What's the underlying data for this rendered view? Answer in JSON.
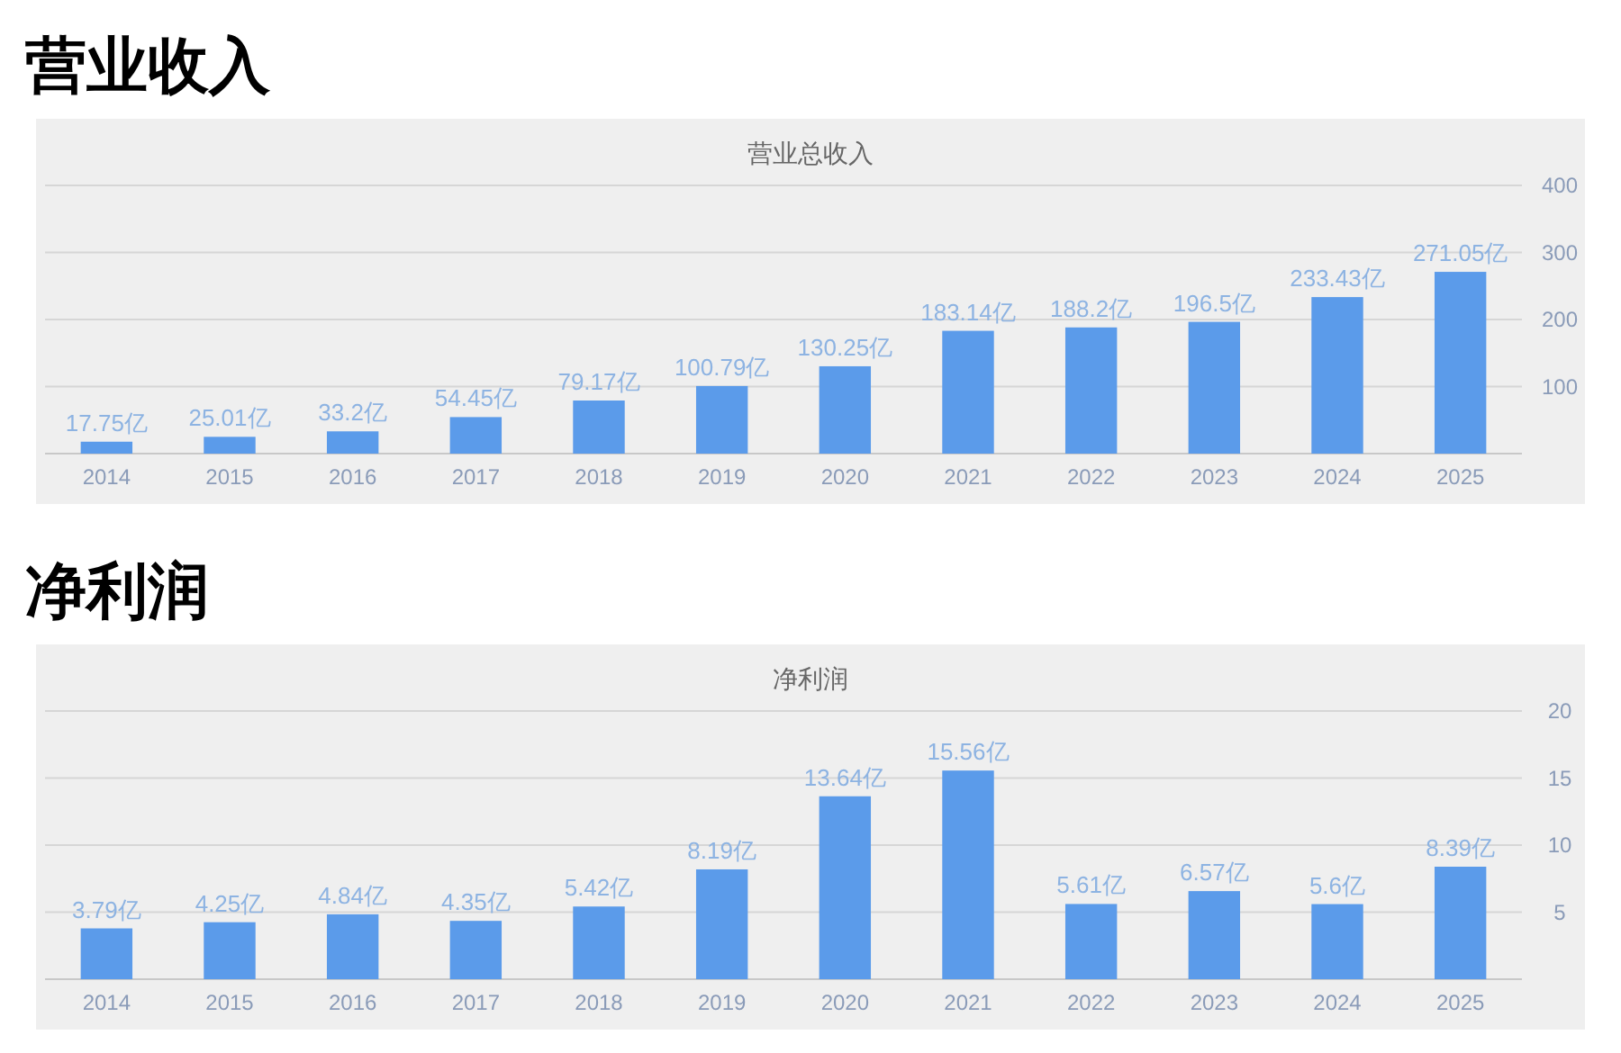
{
  "chart_data": [
    {
      "type": "bar",
      "title": "营业收入",
      "subtitle": "营业总收入",
      "categories": [
        "2014",
        "2015",
        "2016",
        "2017",
        "2018",
        "2019",
        "2020",
        "2021",
        "2022",
        "2023",
        "2024",
        "2025"
      ],
      "values": [
        17.75,
        25.01,
        33.2,
        54.45,
        79.17,
        100.79,
        130.25,
        183.14,
        188.2,
        196.5,
        233.43,
        271.05
      ],
      "value_labels": [
        "17.75亿",
        "25.01亿",
        "33.2亿",
        "54.45亿",
        "79.17亿",
        "100.79亿",
        "130.25亿",
        "183.14亿",
        "188.2亿",
        "196.5亿",
        "233.43亿",
        "271.05亿"
      ],
      "color": "#5b9bea",
      "ylim": [
        0,
        400
      ],
      "yticks": [
        100,
        200,
        300,
        400
      ],
      "grid": "y"
    },
    {
      "type": "bar",
      "title": "净利润",
      "subtitle": "净利润",
      "categories": [
        "2014",
        "2015",
        "2016",
        "2017",
        "2018",
        "2019",
        "2020",
        "2021",
        "2022",
        "2023",
        "2024",
        "2025"
      ],
      "values": [
        3.79,
        4.25,
        4.84,
        4.35,
        5.42,
        8.19,
        13.64,
        15.56,
        5.61,
        6.57,
        5.6,
        8.39
      ],
      "value_labels": [
        "3.79亿",
        "4.25亿",
        "4.84亿",
        "4.35亿",
        "5.42亿",
        "8.19亿",
        "13.64亿",
        "15.56亿",
        "5.61亿",
        "6.57亿",
        "5.6亿",
        "8.39亿"
      ],
      "color": "#5b9bea",
      "ylim": [
        0,
        20
      ],
      "yticks": [
        5,
        10,
        15,
        20
      ],
      "grid": "y"
    }
  ]
}
